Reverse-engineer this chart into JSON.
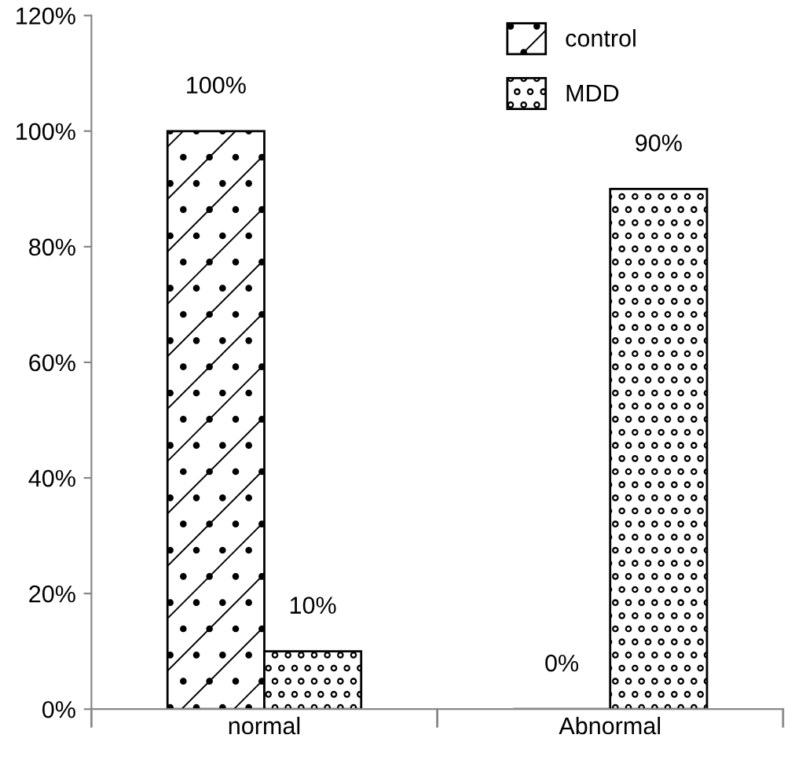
{
  "chart_data": {
    "type": "bar",
    "categories": [
      "normal",
      "Abnormal"
    ],
    "series": [
      {
        "name": "control",
        "color": "#000000",
        "values": [
          100,
          0
        ],
        "value_labels": [
          "100%",
          "0%"
        ]
      },
      {
        "name": "MDD",
        "color": "#000000",
        "values": [
          10,
          90
        ],
        "value_labels": [
          "10%",
          "90%"
        ]
      }
    ],
    "ylim": [
      0,
      120
    ],
    "yticks": [
      {
        "value": 0,
        "label": "0%"
      },
      {
        "value": 20,
        "label": "20%"
      },
      {
        "value": 40,
        "label": "40%"
      },
      {
        "value": 60,
        "label": "60%"
      },
      {
        "value": 80,
        "label": "80%"
      },
      {
        "value": 100,
        "label": "100%"
      },
      {
        "value": 120,
        "label": "120%"
      }
    ],
    "legend": "top right",
    "grid": false
  }
}
